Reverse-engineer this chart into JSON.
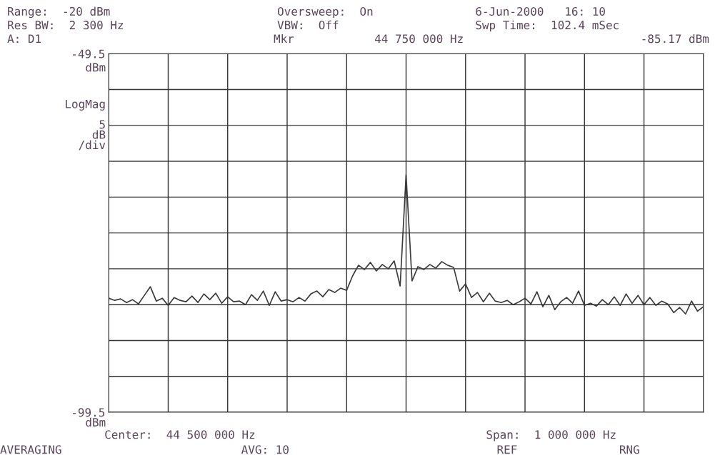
{
  "chart_data": {
    "type": "line",
    "ylabel": "LogMag\n\n5\ndB\n/div",
    "annotations": [
      "Range:  -20 dBm",
      "Oversweep:  On",
      "6-Jun-2000   16: 10",
      "Res BW:  2 300 Hz",
      "VBW:  Off",
      "Swp Time:  102.4 mSec",
      "A: D1",
      "Mkr",
      "44 750 000 Hz",
      "-85.17 dBm",
      "dBm",
      "dBm",
      "Center:  44 500 000 Hz",
      "Span:  1 000 000 Hz",
      "AVERAGING",
      "AVG: 10",
      "REF",
      "RNG"
    ],
    "categories": [
      null,
      null,
      null,
      null,
      null,
      null,
      null,
      null,
      null,
      null,
      null,
      null,
      null,
      null,
      null,
      null,
      null,
      null,
      null,
      null,
      null,
      null,
      null,
      null,
      null,
      null,
      null,
      null,
      null,
      null,
      null,
      null,
      null,
      null,
      null,
      null,
      null,
      null,
      null,
      null,
      null,
      null,
      null,
      null,
      null,
      null,
      null,
      null,
      null,
      null,
      null,
      null,
      null,
      null,
      null,
      null,
      null,
      null,
      null,
      null,
      null,
      null,
      null,
      null,
      null,
      null,
      null,
      null,
      null,
      null,
      null,
      null,
      null,
      null,
      null,
      null,
      null,
      null,
      null,
      null,
      null,
      null,
      null,
      null,
      null,
      null,
      null,
      null,
      null,
      null,
      null,
      null,
      null,
      null,
      null,
      null,
      null,
      null,
      null,
      null,
      null
    ],
    "ylim": [
      -99.5,
      -49.5
    ],
    "yticks": [
      {
        "value": -99.5,
        "label": "-99.5"
      },
      {
        "value": -94.5,
        "label": null
      },
      {
        "value": -89.5,
        "label": null
      },
      {
        "value": -84.5,
        "label": null
      },
      {
        "value": -79.5,
        "label": null
      },
      {
        "value": -74.5,
        "label": null
      },
      {
        "value": -69.5,
        "label": null
      },
      {
        "value": -64.5,
        "label": null
      },
      {
        "value": -59.5,
        "label": null
      },
      {
        "value": -54.5,
        "label": null
      },
      {
        "value": -49.5,
        "label": "-49.5"
      }
    ],
    "grid": true,
    "series": [
      {
        "color": "#3a3a3a",
        "marker": "none",
        "line_style": "solid",
        "values": [
          -83.6,
          -83.9,
          -83.7,
          -84.2,
          -83.8,
          -84.4,
          -83.2,
          -82.0,
          -84.0,
          -83.6,
          -84.6,
          -83.5,
          -83.9,
          -84.1,
          -83.3,
          -84.2,
          -83.0,
          -83.8,
          -82.9,
          -84.3,
          -83.4,
          -84.1,
          -84.0,
          -84.5,
          -83.1,
          -83.9,
          -82.6,
          -84.6,
          -82.7,
          -84.0,
          -83.8,
          -84.1,
          -83.5,
          -84.0,
          -83.0,
          -82.6,
          -83.4,
          -82.4,
          -82.8,
          -82.2,
          -82.5,
          -80.5,
          -79.0,
          -79.6,
          -78.6,
          -79.8,
          -78.9,
          -79.5,
          -78.4,
          -81.9,
          -66.4,
          -81.2,
          -79.2,
          -79.6,
          -78.9,
          -79.4,
          -78.5,
          -79.0,
          -79.3,
          -82.6,
          -81.6,
          -83.5,
          -82.8,
          -84.1,
          -82.9,
          -84.0,
          -84.2,
          -83.9,
          -84.5,
          -84.1,
          -83.6,
          -84.4,
          -82.7,
          -84.8,
          -83.2,
          -85.2,
          -84.1,
          -83.5,
          -84.3,
          -82.6,
          -84.6,
          -84.3,
          -84.7,
          -83.8,
          -84.5,
          -83.4,
          -84.6,
          -83.0,
          -84.3,
          -83.2,
          -84.5,
          -83.5,
          -84.6,
          -84.0,
          -84.4,
          -85.6,
          -84.9,
          -85.8,
          -84.0,
          -85.4,
          -84.8
        ]
      }
    ]
  }
}
